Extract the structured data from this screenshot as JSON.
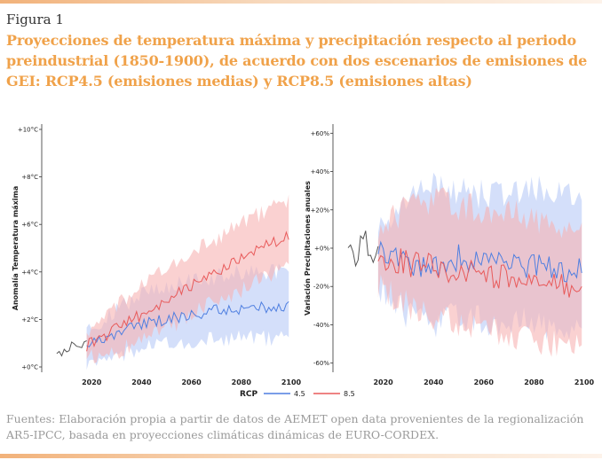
{
  "figure": {
    "label": "Figura 1",
    "title": "Proyecciones de temperatura máxima y precipitación respecto al periodo preindustrial (1850-1900), de acuerdo con dos escenarios de emisiones de GEI: RCP4.5 (emisiones medias) y RCP8.5 (emisiones altas)",
    "source": "Fuentes: Elaboración propia a partir de datos de AEMET open data provenientes de la regionalización AR5-IPCC, basada en proyecciones climáticas dinámicas de EURO-CORDEX."
  },
  "colors": {
    "rcp45": "#4f7fe0",
    "rcp85": "#e85a5a",
    "band45": "#b7c9f7",
    "band85": "#f6b3b3",
    "historical": "#555555",
    "accent": "#f0a24a"
  },
  "legend": {
    "title": "RCP",
    "items": [
      "4.5",
      "8.5"
    ]
  },
  "chart_data": [
    {
      "type": "line",
      "ylabel": "Anomalía Temperatura máxima",
      "xlim": [
        2000,
        2100
      ],
      "ylim": [
        0,
        10
      ],
      "xticks": [
        2020,
        2040,
        2060,
        2080,
        2100
      ],
      "xtick_labels": [
        "2020",
        "2040",
        "2060",
        "2080",
        "2100"
      ],
      "yticks": [
        0,
        2,
        4,
        6,
        8,
        10
      ],
      "ytick_labels": [
        "+0°C",
        "+2°C",
        "+4°C",
        "+6°C",
        "+8°C",
        "+10°C"
      ],
      "historical": {
        "x": [
          2006,
          2010,
          2014,
          2018
        ],
        "y": [
          0.4,
          0.8,
          0.9,
          1.0
        ]
      },
      "series": [
        {
          "name": "4.5",
          "x": [
            2018,
            2030,
            2040,
            2050,
            2060,
            2070,
            2080,
            2090,
            2099
          ],
          "y": [
            0.9,
            1.4,
            1.8,
            2.0,
            2.2,
            2.4,
            2.4,
            2.5,
            2.6
          ],
          "lower": [
            0.2,
            0.4,
            0.8,
            1.0,
            1.0,
            1.2,
            1.2,
            1.2,
            1.2
          ],
          "upper": [
            1.5,
            2.4,
            3.0,
            3.4,
            3.6,
            3.8,
            4.0,
            4.0,
            4.0
          ]
        },
        {
          "name": "8.5",
          "x": [
            2018,
            2030,
            2040,
            2050,
            2060,
            2070,
            2080,
            2090,
            2099
          ],
          "y": [
            0.9,
            1.6,
            2.2,
            2.8,
            3.4,
            4.0,
            4.6,
            5.1,
            5.5
          ],
          "lower": [
            0.4,
            0.6,
            1.2,
            1.6,
            2.2,
            2.8,
            3.2,
            3.8,
            4.2
          ],
          "upper": [
            1.4,
            2.6,
            3.4,
            4.2,
            4.8,
            5.4,
            6.0,
            6.6,
            7.0
          ]
        }
      ]
    },
    {
      "type": "line",
      "ylabel": "Variación Precipitaciones anuales",
      "xlim": [
        2000,
        2100
      ],
      "ylim": [
        -62,
        62
      ],
      "xticks": [
        2020,
        2040,
        2060,
        2080,
        2100
      ],
      "xtick_labels": [
        "2020",
        "2040",
        "2060",
        "2080",
        "2100"
      ],
      "yticks": [
        -60,
        -40,
        -20,
        0,
        20,
        40,
        60
      ],
      "ytick_labels": [
        "-60%",
        "-40%",
        "-20%",
        "+0%",
        "+20%",
        "+40%",
        "+60%"
      ],
      "historical": {
        "x": [
          2006,
          2009,
          2012,
          2015,
          2018
        ],
        "y": [
          -2,
          -6,
          8,
          -5,
          0
        ]
      },
      "series": [
        {
          "name": "4.5",
          "x": [
            2018,
            2030,
            2040,
            2050,
            2060,
            2070,
            2080,
            2090,
            2099
          ],
          "y": [
            -2,
            -10,
            -12,
            -5,
            -8,
            -10,
            -8,
            -12,
            -10
          ],
          "lower": [
            -20,
            -35,
            -40,
            -35,
            -38,
            -40,
            -38,
            -45,
            -40
          ],
          "upper": [
            10,
            25,
            35,
            30,
            28,
            30,
            32,
            28,
            25
          ]
        },
        {
          "name": "8.5",
          "x": [
            2018,
            2030,
            2040,
            2050,
            2060,
            2070,
            2080,
            2090,
            2099
          ],
          "y": [
            -4,
            -8,
            -10,
            -12,
            -14,
            -15,
            -18,
            -18,
            -20
          ],
          "lower": [
            -20,
            -30,
            -35,
            -40,
            -42,
            -45,
            -48,
            -50,
            -52
          ],
          "upper": [
            10,
            22,
            25,
            22,
            20,
            18,
            15,
            10,
            10
          ]
        }
      ]
    }
  ]
}
